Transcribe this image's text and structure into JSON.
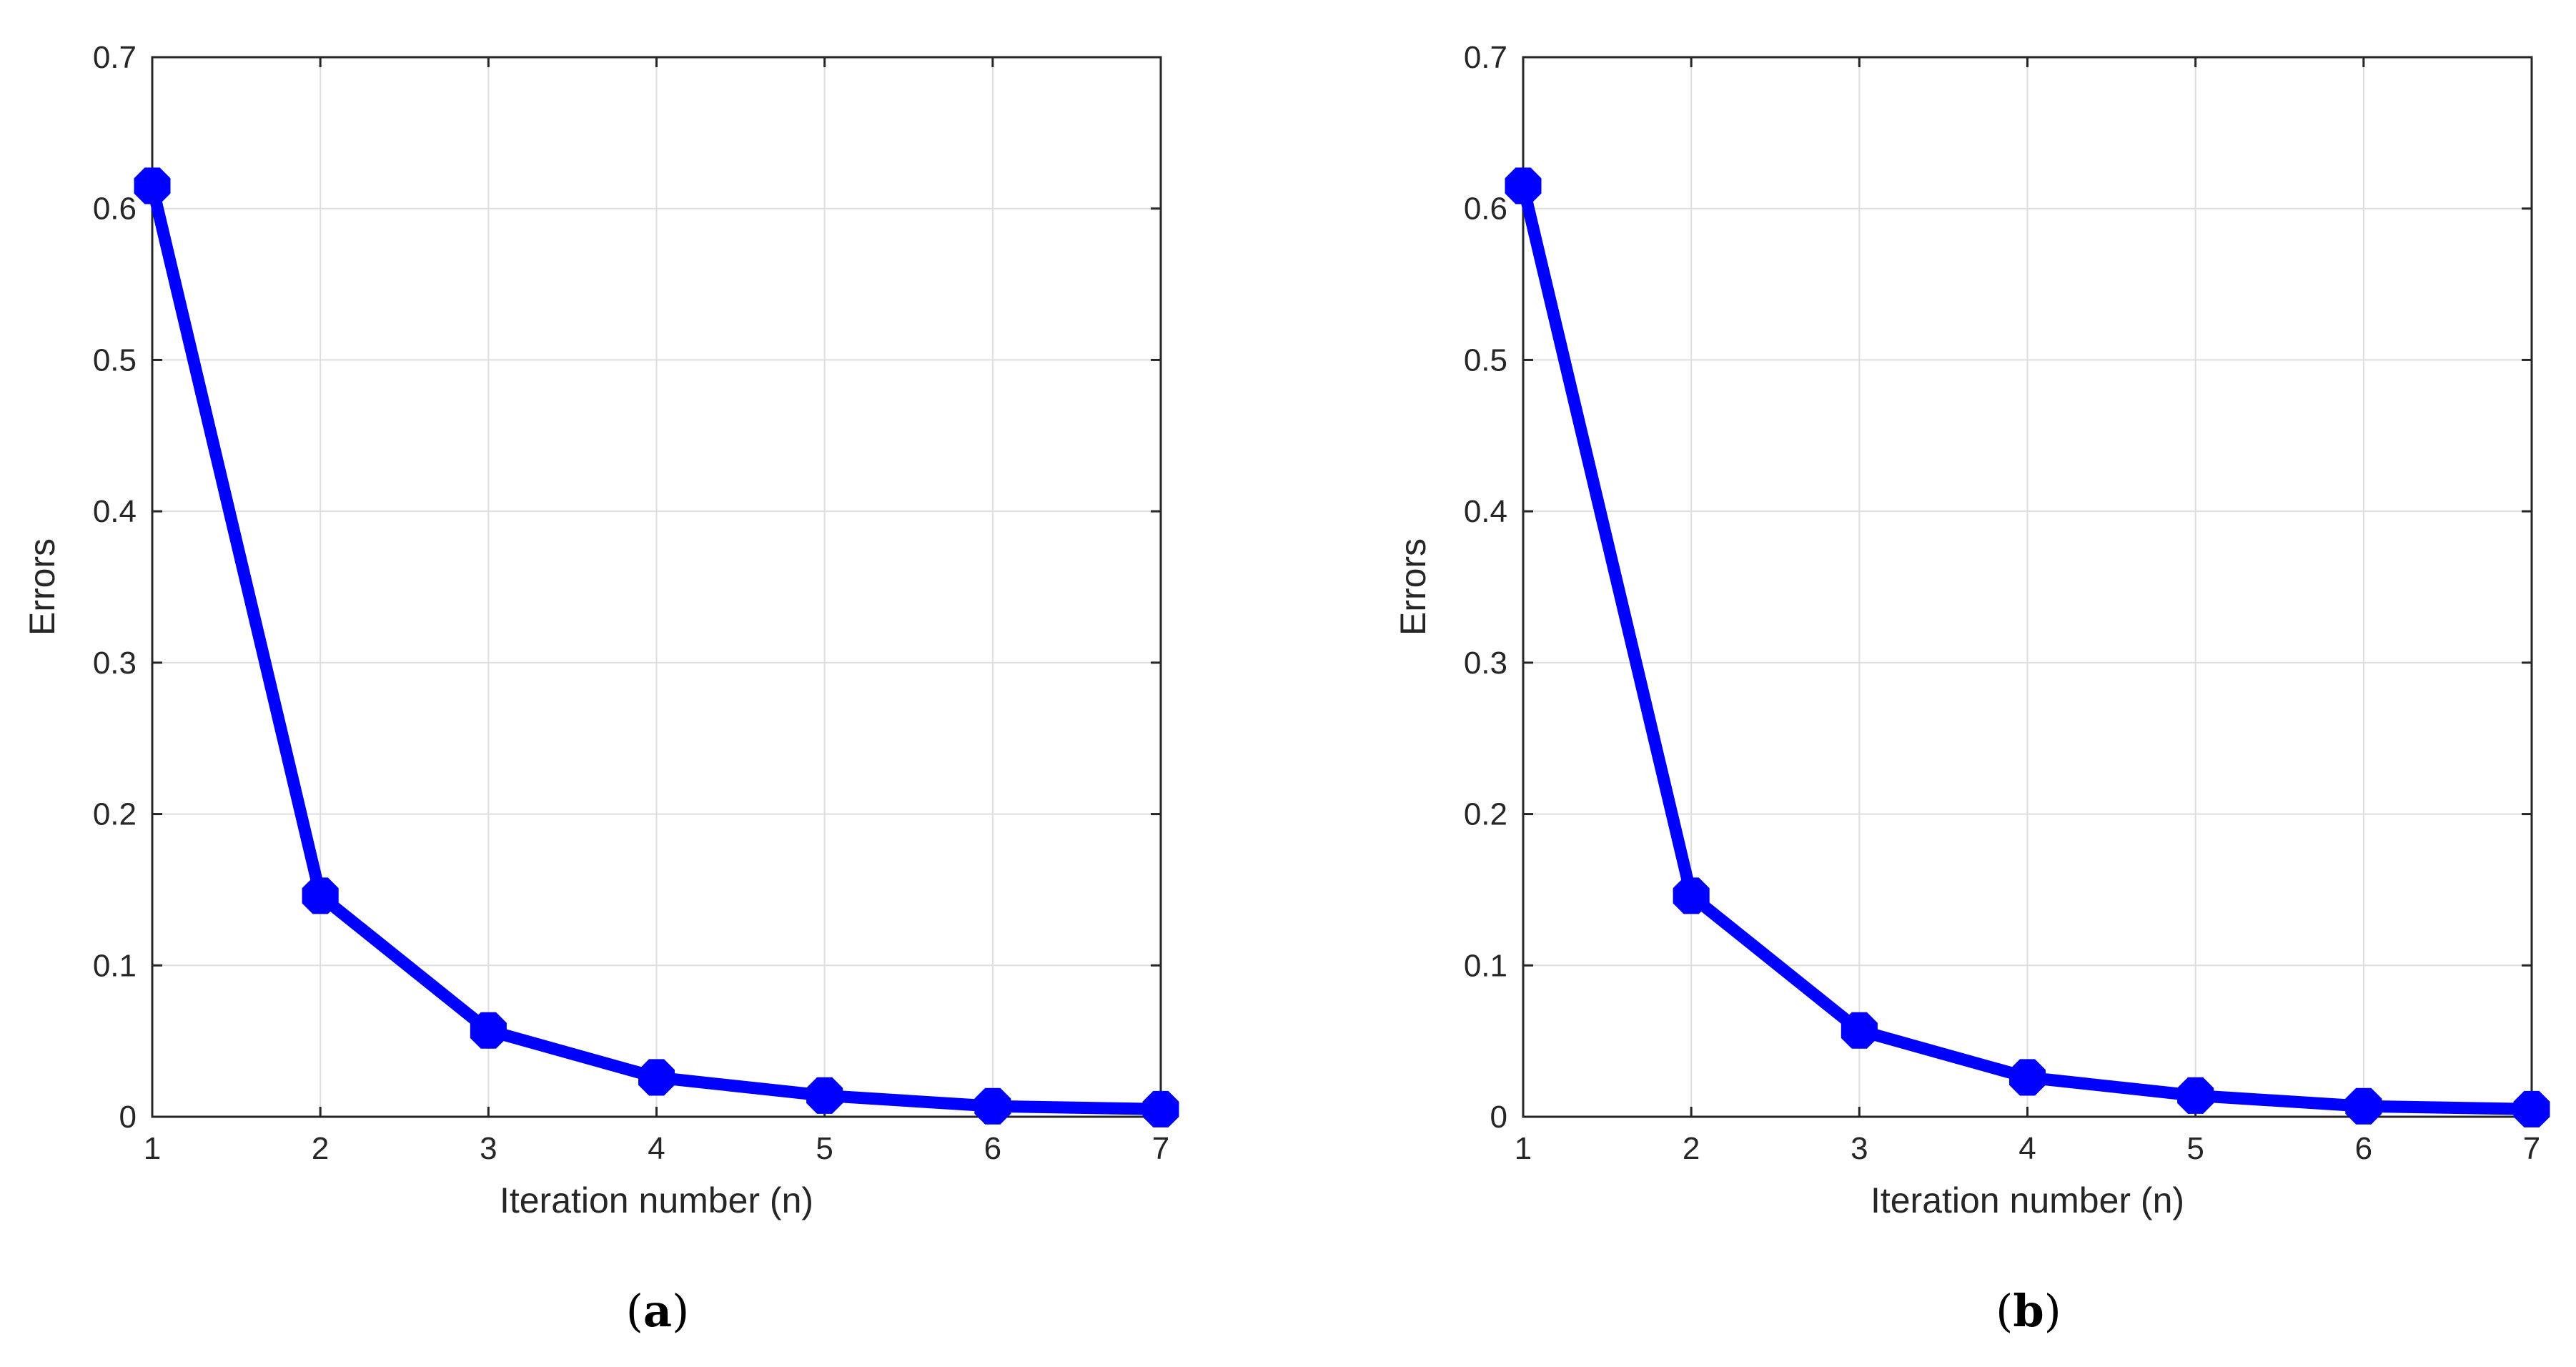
{
  "chart_data": [
    {
      "type": "line",
      "panel_label": "a",
      "xlabel": "Iteration number (n)",
      "ylabel": "Errors",
      "xlim": [
        1,
        7
      ],
      "ylim": [
        0,
        0.7
      ],
      "xticks": [
        "1",
        "2",
        "3",
        "4",
        "5",
        "6",
        "7"
      ],
      "yticks": [
        "0",
        "0.1",
        "0.2",
        "0.3",
        "0.4",
        "0.5",
        "0.6",
        "0.7"
      ],
      "grid": true,
      "series": [
        {
          "x": [
            1,
            2,
            3,
            4,
            5,
            6,
            7
          ],
          "values": [
            0.615,
            0.146,
            0.057,
            0.026,
            0.014,
            0.007,
            0.005
          ],
          "color": "#0000ff",
          "marker": "octagon"
        }
      ]
    },
    {
      "type": "line",
      "panel_label": "b",
      "xlabel": "Iteration number (n)",
      "ylabel": "Errors",
      "xlim": [
        1,
        7
      ],
      "ylim": [
        0,
        0.7
      ],
      "xticks": [
        "1",
        "2",
        "3",
        "4",
        "5",
        "6",
        "7"
      ],
      "yticks": [
        "0",
        "0.1",
        "0.2",
        "0.3",
        "0.4",
        "0.5",
        "0.6",
        "0.7"
      ],
      "grid": true,
      "series": [
        {
          "x": [
            1,
            2,
            3,
            4,
            5,
            6,
            7
          ],
          "values": [
            0.615,
            0.146,
            0.057,
            0.026,
            0.014,
            0.007,
            0.005
          ],
          "color": "#0000ff",
          "marker": "octagon"
        }
      ]
    }
  ],
  "captions": [
    {
      "open": "(",
      "letter": "a",
      "close": ")"
    },
    {
      "open": "(",
      "letter": "b",
      "close": ")"
    }
  ]
}
